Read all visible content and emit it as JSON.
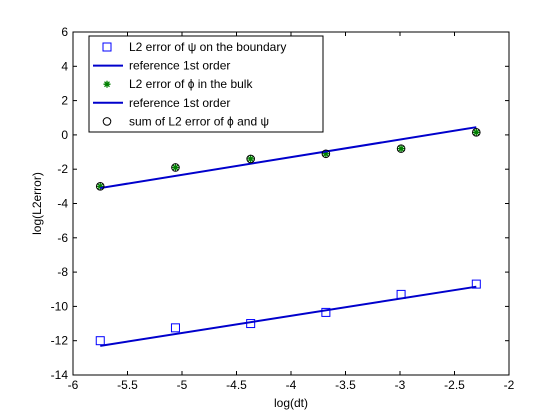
{
  "chart_data": {
    "type": "scatter",
    "xlabel": "log(dt)",
    "ylabel": "log(L2error)",
    "xlim": [
      -6,
      -2
    ],
    "ylim": [
      -14,
      6
    ],
    "xticks": [
      -6,
      -5.5,
      -5,
      -4.5,
      -4,
      -3.5,
      -3,
      -2.5,
      -2
    ],
    "xtick_labels": [
      "-6",
      "-5.5",
      "-5",
      "-4.5",
      "-4",
      "-3.5",
      "-3",
      "-2.5",
      "-2"
    ],
    "yticks": [
      -14,
      -12,
      -10,
      -8,
      -6,
      -4,
      -2,
      0,
      2,
      4,
      6
    ],
    "ytick_labels": [
      "-14",
      "-12",
      "-10",
      "-8",
      "-6",
      "-4",
      "-2",
      "0",
      "2",
      "4",
      "6"
    ],
    "grid": false,
    "legend_position": "top-left",
    "series": [
      {
        "name": "L2 error of ψ on the boundary",
        "kind": "marker",
        "marker": "square",
        "color": "#0000ff",
        "x": [
          -5.75,
          -5.06,
          -4.37,
          -3.68,
          -2.99,
          -2.3
        ],
        "y": [
          -12.0,
          -11.25,
          -11.0,
          -10.35,
          -9.3,
          -8.7
        ]
      },
      {
        "name": "reference 1st order",
        "kind": "line",
        "color": "#0000cc",
        "x": [
          -5.75,
          -2.3
        ],
        "y": [
          -12.3,
          -8.85
        ]
      },
      {
        "name": "L2 error of ϕ in the bulk",
        "kind": "marker",
        "marker": "star",
        "color": "#008000",
        "x": [
          -5.75,
          -5.06,
          -4.37,
          -3.68,
          -2.99,
          -2.3
        ],
        "y": [
          -3.0,
          -1.9,
          -1.4,
          -1.1,
          -0.8,
          0.15
        ]
      },
      {
        "name": "reference 1st order",
        "kind": "line",
        "color": "#0000cc",
        "x": [
          -5.75,
          -2.3
        ],
        "y": [
          -3.1,
          0.45
        ]
      },
      {
        "name": "sum of L2 error of ϕ and ψ",
        "kind": "marker",
        "marker": "circle",
        "color": "#000000",
        "x": [
          -5.75,
          -5.06,
          -4.37,
          -3.68,
          -2.99,
          -2.3
        ],
        "y": [
          -3.0,
          -1.9,
          -1.4,
          -1.1,
          -0.8,
          0.15
        ]
      }
    ]
  }
}
